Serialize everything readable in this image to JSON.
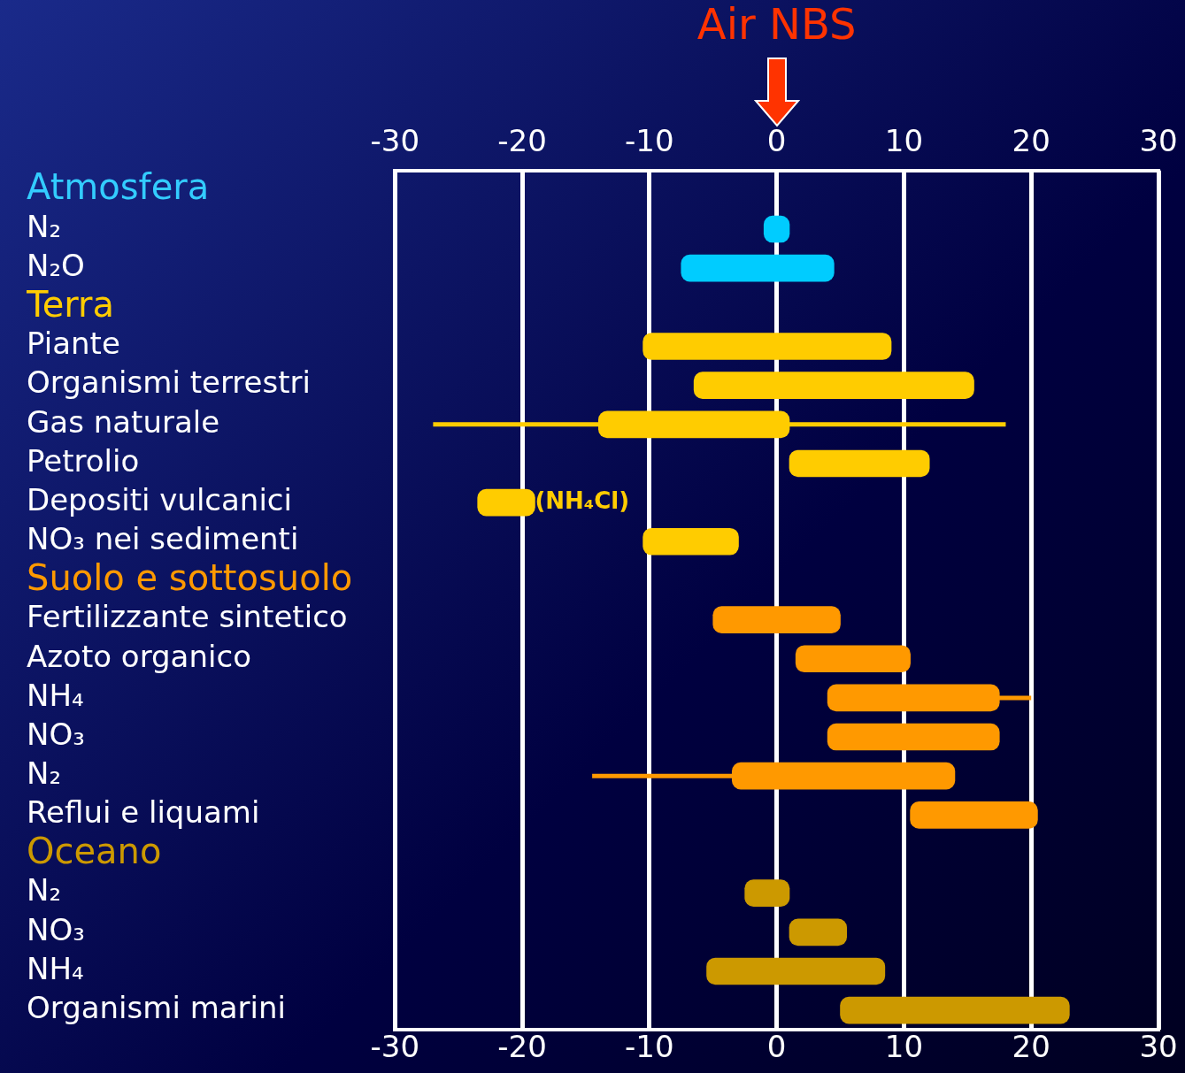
{
  "chart_data": {
    "type": "bar",
    "orientation": "horizontal",
    "title": "Air NBS",
    "categories": [
      "Atmosfera",
      "N₂",
      "N₂O",
      "Terra",
      "Piante",
      "Organismi terrestri",
      "Gas naturale",
      "Petrolio",
      "Depositi vulcanici",
      "NO₃ nei sedimenti",
      "Suolo e sottosuolo",
      "Fertilizzante sintetico",
      "Azoto organico",
      "NH₄",
      "NO₃",
      "N₂",
      "Reflui e liquami",
      "Oceano",
      "N₂",
      "NO₃",
      "NH₄",
      "Organismi marini"
    ],
    "base": [
      null,
      -1,
      -7.5,
      null,
      -10.5,
      -6.5,
      -14,
      1,
      -23.5,
      -10.5,
      null,
      -5,
      1.5,
      4,
      4,
      -3.5,
      10.5,
      null,
      -2.5,
      1,
      -5.5,
      5
    ],
    "values": [
      null,
      2,
      12,
      null,
      19.5,
      22,
      15,
      11,
      4.5,
      7.5,
      null,
      10,
      9,
      13.5,
      13.5,
      17.5,
      10,
      null,
      3.5,
      4.5,
      14,
      18
    ],
    "errors": [
      null,
      null,
      null,
      null,
      null,
      null,
      [
        -27,
        18
      ],
      null,
      null,
      null,
      null,
      null,
      null,
      [
        4,
        20
      ],
      null,
      [
        -14.5,
        14
      ],
      null,
      null,
      null,
      null,
      null,
      null
    ],
    "colors": [
      "#33ccff",
      "#00ccff",
      "#00ccff",
      "#ffcc00",
      "#ffcc00",
      "#ffcc00",
      "#ffcc00",
      "#ffcc00",
      "#ffcc00",
      "#ffcc00",
      "#ff9900",
      "#ff9900",
      "#ff9900",
      "#ff9900",
      "#ff9900",
      "#ff9900",
      "#ff9900",
      "#cc9900",
      "#cc9900",
      "#cc9900",
      "#cc9900",
      "#cc9900"
    ],
    "xlim": [
      -30,
      30
    ],
    "xticks": [
      -30,
      -20,
      -10,
      0,
      10,
      20,
      30
    ],
    "x2lim": [
      -30,
      30
    ],
    "x2ticks": [
      -30,
      -20,
      -10,
      0,
      10,
      20,
      30
    ],
    "grid": "x",
    "legend": false,
    "annotations": [
      {
        "text": "(NH₄Cl)",
        "x": -19,
        "y": "Depositi vulcanici"
      }
    ]
  }
}
